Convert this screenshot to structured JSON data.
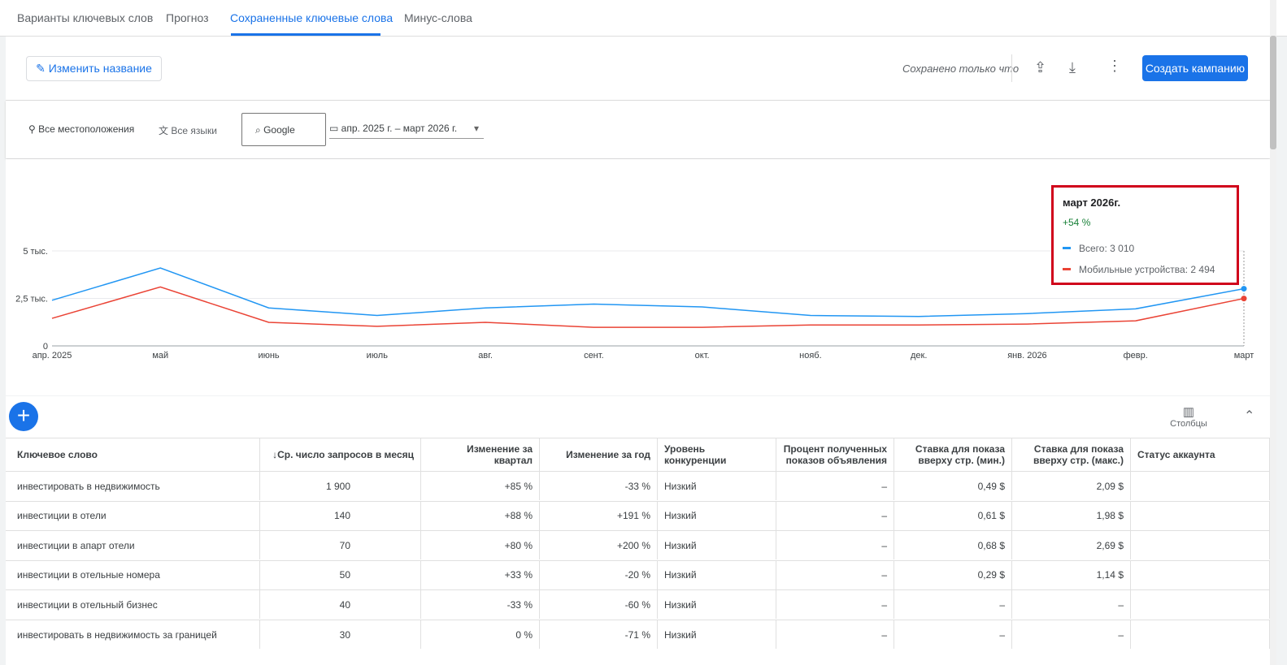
{
  "tabs": [
    "Варианты ключевых слов",
    "Прогноз",
    "Сохраненные ключевые слова",
    "Минус-слова"
  ],
  "toolbar": {
    "rename": "Изменить название",
    "saved": "Сохранено только что",
    "create": "Создать кампанию"
  },
  "filters": {
    "location": "Все местоположения",
    "language": "Все языки",
    "network": "Google",
    "period": "апр. 2025 г. – март 2026 г."
  },
  "chart": {
    "type": "line",
    "categories": [
      "апр. 2025",
      "май",
      "июнь",
      "июль",
      "авг.",
      "сент.",
      "окт.",
      "нояб.",
      "дек.",
      "янв. 2026",
      "февр.",
      "март"
    ],
    "ylim": [
      0,
      5000
    ],
    "yticks": [
      0,
      {
        "value": 2500,
        "label": "2,5 тыс."
      },
      {
        "value": 5000,
        "label": "5 тыс."
      }
    ],
    "grid": true,
    "series": [
      {
        "name": "Всего",
        "color": "#2196f3",
        "values": [
          2400,
          4100,
          2000,
          1600,
          2000,
          2200,
          2050,
          1600,
          1550,
          1700,
          1950,
          3010
        ]
      },
      {
        "name": "Мобильные устройства",
        "color": "#ea4335",
        "values": [
          1450,
          3100,
          1240,
          1030,
          1240,
          980,
          980,
          1100,
          1100,
          1150,
          1320,
          2494
        ]
      }
    ]
  },
  "tooltip": {
    "title": "март 2026г.",
    "change": "+54 %",
    "rows": [
      "Всего: 3 010",
      "Мобильные устройства: 2 494"
    ]
  },
  "table": {
    "columns_button": "Столбцы",
    "headers": [
      "Ключевое слово",
      "Ср. число запросов в месяц",
      "Изменение за квартал",
      "Изменение за год",
      "Уровень конкуренции",
      "Процент полученных показов объявления",
      "Ставка для показа вверху стр. (мин.)",
      "Ставка для показа вверху стр. (макс.)",
      "Статус аккаунта"
    ],
    "rows": [
      [
        "инвестировать в недвижимость",
        "1 900",
        "+85 %",
        "-33 %",
        "Низкий",
        "–",
        "0,49 $",
        "2,09 $"
      ],
      [
        "инвестиции в отели",
        "140",
        "+88 %",
        "+191 %",
        "Низкий",
        "–",
        "0,61 $",
        "1,98 $"
      ],
      [
        "инвестиции в апарт отели",
        "70",
        "+80 %",
        "+200 %",
        "Низкий",
        "–",
        "0,68 $",
        "2,69 $"
      ],
      [
        "инвестиции в отельные номера",
        "50",
        "+33 %",
        "-20 %",
        "Низкий",
        "–",
        "0,29 $",
        "1,14 $"
      ],
      [
        "инвестиции в отельный бизнес",
        "40",
        "-33 %",
        "-60 %",
        "Низкий",
        "–",
        "–",
        "–"
      ],
      [
        "инвестировать в недвижимость за границей",
        "30",
        "0 %",
        "-71 %",
        "Низкий",
        "–",
        "–",
        "–"
      ]
    ]
  }
}
